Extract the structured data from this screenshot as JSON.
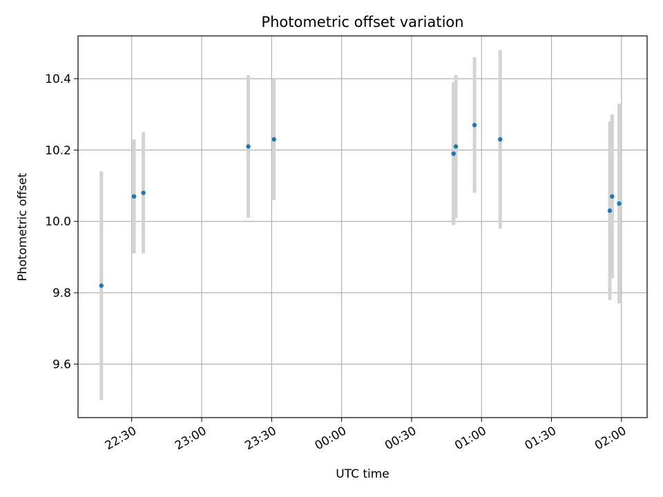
{
  "chart_data": {
    "type": "scatter",
    "title": "Photometric offset variation",
    "xlabel": "UTC time",
    "ylabel": "Photometric offset",
    "x_tick_labels": [
      "22:30",
      "23:00",
      "23:30",
      "00:00",
      "00:30",
      "01:00",
      "01:30",
      "02:00"
    ],
    "y_tick_labels": [
      "9.6",
      "9.8",
      "10.0",
      "10.2",
      "10.4"
    ],
    "grid": true,
    "colors": {
      "point": "#1f77b4",
      "errorbar": "#d3d3d3",
      "grid": "#b0b0b0"
    },
    "series": [
      {
        "points": [
          {
            "x": "22:17",
            "y": 9.82,
            "err": 0.32
          },
          {
            "x": "22:31",
            "y": 10.07,
            "err": 0.16
          },
          {
            "x": "22:35",
            "y": 10.08,
            "err": 0.17
          },
          {
            "x": "23:20",
            "y": 10.21,
            "err": 0.2
          },
          {
            "x": "23:31",
            "y": 10.23,
            "err": 0.17
          },
          {
            "x": "00:48",
            "y": 10.19,
            "err": 0.2
          },
          {
            "x": "00:48",
            "y": 10.19,
            "err": 0.19
          },
          {
            "x": "00:49",
            "y": 10.21,
            "err": 0.2
          },
          {
            "x": "00:57",
            "y": 10.27,
            "err": 0.19
          },
          {
            "x": "01:08",
            "y": 10.23,
            "err": 0.25
          },
          {
            "x": "01:55",
            "y": 10.03,
            "err": 0.25
          },
          {
            "x": "01:56",
            "y": 10.07,
            "err": 0.23
          },
          {
            "x": "01:59",
            "y": 10.05,
            "err": 0.28
          }
        ]
      }
    ]
  }
}
